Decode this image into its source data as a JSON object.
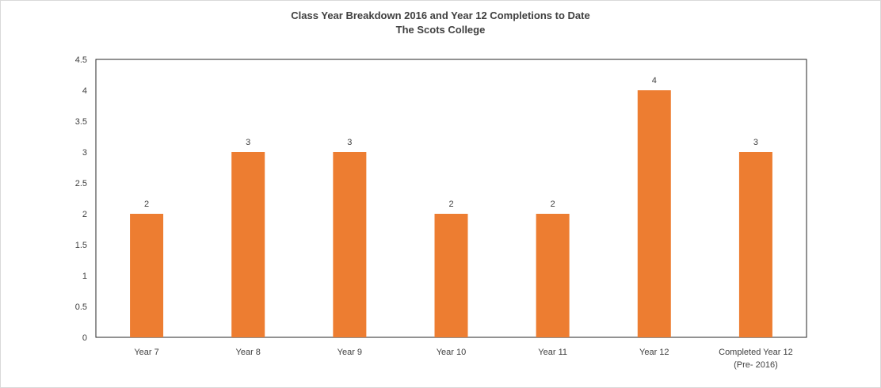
{
  "chart_data": {
    "type": "bar",
    "title": "Class Year Breakdown 2016 and Year 12 Completions to Date",
    "subtitle": "The Scots College",
    "categories": [
      "Year 7",
      "Year 8",
      "Year 9",
      "Year 10",
      "Year 11",
      "Year 12",
      [
        "Completed Year 12",
        "(Pre- 2016)"
      ]
    ],
    "values": [
      2,
      3,
      3,
      2,
      2,
      4,
      3
    ],
    "data_labels": [
      "2",
      "3",
      "3",
      "2",
      "2",
      "4",
      "3"
    ],
    "y_ticks": [
      "0",
      "0.5",
      "1",
      "1.5",
      "2",
      "2.5",
      "3",
      "3.5",
      "4",
      "4.5"
    ],
    "ylim": [
      0,
      4.5
    ],
    "grid": false,
    "legend": "none",
    "bar_color": "#ed7d31"
  }
}
